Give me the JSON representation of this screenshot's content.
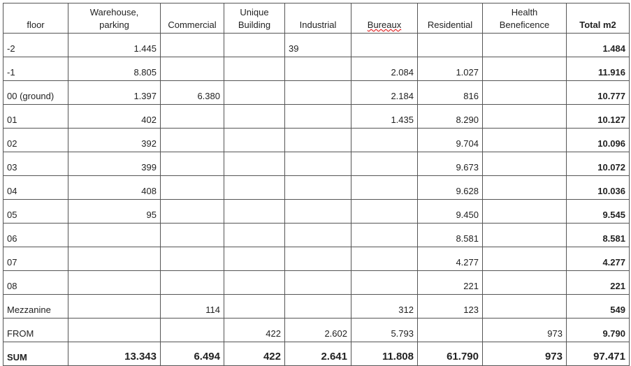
{
  "table": {
    "header": [
      "floor",
      "Warehouse,\nparking",
      "Commercial",
      "Unique\nBuilding",
      "Industrial",
      "Bureaux",
      "Residential",
      "Health\nBeneficence",
      "Total m2"
    ],
    "rows": [
      [
        "-2",
        "1.445",
        null,
        null,
        "39",
        null,
        null,
        null,
        "1.484"
      ],
      [
        "-1",
        "8.805",
        null,
        null,
        null,
        "2.084",
        "1.027",
        null,
        "11.916"
      ],
      [
        "00 (ground)",
        "1.397",
        "6.380",
        null,
        null,
        "2.184",
        "816",
        null,
        "10.777"
      ],
      [
        "01",
        "402",
        null,
        null,
        null,
        "1.435",
        "8.290",
        null,
        "10.127"
      ],
      [
        "02",
        "392",
        null,
        null,
        null,
        null,
        "9.704",
        null,
        "10.096"
      ],
      [
        "03",
        "399",
        null,
        null,
        null,
        null,
        "9.673",
        null,
        "10.072"
      ],
      [
        "04",
        "408",
        null,
        null,
        null,
        null,
        "9.628",
        null,
        "10.036"
      ],
      [
        "05",
        "95",
        null,
        null,
        null,
        null,
        "9.450",
        null,
        "9.545"
      ],
      [
        "06",
        null,
        null,
        null,
        null,
        null,
        "8.581",
        null,
        "8.581"
      ],
      [
        "07",
        null,
        null,
        null,
        null,
        null,
        "4.277",
        null,
        "4.277"
      ],
      [
        "08",
        null,
        null,
        null,
        null,
        null,
        "221",
        null,
        "221"
      ],
      [
        "Mezzanine",
        null,
        "114",
        null,
        null,
        "312",
        "123",
        null,
        "549"
      ],
      [
        "FROM",
        null,
        null,
        "422",
        "2.602",
        "5.793",
        null,
        "973",
        "9.790"
      ],
      [
        "SUM",
        "13.343",
        "6.494",
        "422",
        "2.641",
        "11.808",
        "61.790",
        "973",
        "97.471"
      ]
    ]
  }
}
